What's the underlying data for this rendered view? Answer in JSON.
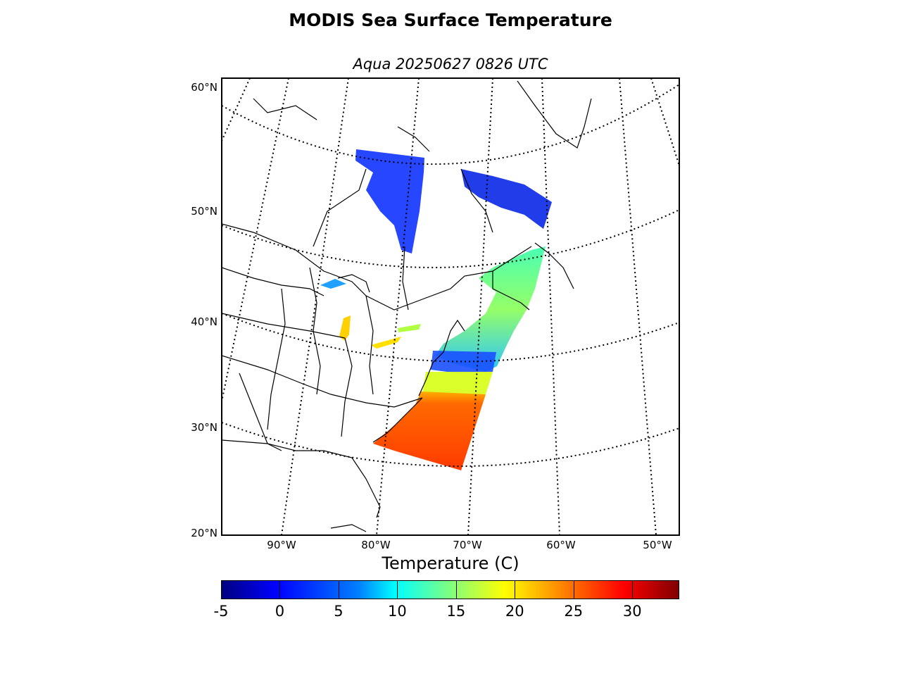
{
  "title": "MODIS Sea Surface Temperature",
  "subtitle": "Aqua 20250627 0826 UTC",
  "map": {
    "latitude_labels": [
      "60°N",
      "50°N",
      "40°N",
      "30°N",
      "20°N"
    ],
    "longitude_labels": [
      "90°W",
      "80°W",
      "70°W",
      "60°W",
      "50°W"
    ],
    "graticule": "dotted",
    "swath_colors": {
      "north": "#1a3cff",
      "mid": "#40ffb0",
      "gulf": "#ff5a00"
    }
  },
  "colorbar": {
    "label": "Temperature (C)",
    "ticks": [
      "-5",
      "0",
      "5",
      "10",
      "15",
      "20",
      "25",
      "30"
    ],
    "range": [
      -5,
      34
    ],
    "colormap": "jet"
  }
}
